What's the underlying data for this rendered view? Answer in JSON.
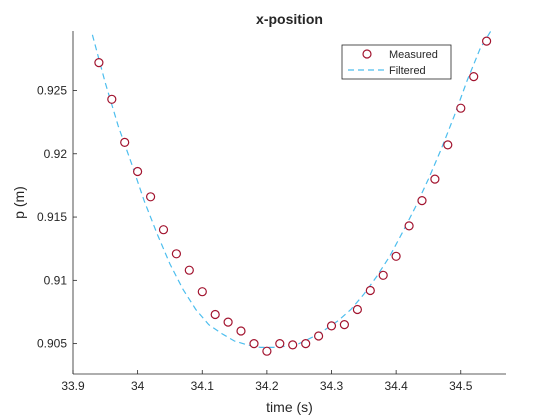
{
  "chart_data": {
    "type": "scatter",
    "title": "x-position",
    "xlabel": "time (s)",
    "ylabel": "p (m)",
    "xlim": [
      33.9,
      34.57
    ],
    "ylim": [
      0.9026,
      0.9297
    ],
    "xticks": [
      33.9,
      34.0,
      34.1,
      34.2,
      34.3,
      34.4,
      34.5
    ],
    "xtick_labels": [
      "33.9",
      "34",
      "34.1",
      "34.2",
      "34.3",
      "34.4",
      "34.5"
    ],
    "yticks": [
      0.905,
      0.91,
      0.915,
      0.92,
      0.925
    ],
    "ytick_labels": [
      "0.905",
      "0.91",
      "0.915",
      "0.92",
      "0.925"
    ],
    "grid": false,
    "legend_position": "top-right",
    "series": [
      {
        "name": "Measured",
        "style": "circle-markers",
        "color": "#a2142f",
        "fill": "#ffffff",
        "x": [
          33.94,
          33.96,
          33.98,
          34.0,
          34.02,
          34.04,
          34.06,
          34.08,
          34.1,
          34.12,
          34.14,
          34.16,
          34.18,
          34.2,
          34.22,
          34.24,
          34.26,
          34.28,
          34.3,
          34.32,
          34.34,
          34.36,
          34.38,
          34.4,
          34.42,
          34.44,
          34.46,
          34.48,
          34.5,
          34.52,
          34.54
        ],
        "y": [
          0.9272,
          0.9243,
          0.9209,
          0.9186,
          0.9166,
          0.914,
          0.9121,
          0.9108,
          0.9091,
          0.9073,
          0.9067,
          0.906,
          0.905,
          0.9044,
          0.905,
          0.9049,
          0.905,
          0.9056,
          0.9064,
          0.9065,
          0.9077,
          0.9092,
          0.9104,
          0.9119,
          0.9143,
          0.9163,
          0.918,
          0.9207,
          0.9236,
          0.9261,
          0.9289
        ]
      },
      {
        "name": "Filtered",
        "style": "dashed-line",
        "color": "#4dbeee",
        "x": [
          33.93,
          33.95,
          33.97,
          33.99,
          34.01,
          34.03,
          34.05,
          34.07,
          34.09,
          34.11,
          34.13,
          34.15,
          34.17,
          34.19,
          34.21,
          34.23,
          34.25,
          34.27,
          34.29,
          34.31,
          34.33,
          34.35,
          34.37,
          34.39,
          34.41,
          34.43,
          34.45,
          34.47,
          34.49,
          34.51,
          34.53,
          34.55
        ],
        "y": [
          0.9294,
          0.9256,
          0.9222,
          0.9193,
          0.9163,
          0.9137,
          0.9113,
          0.9093,
          0.9077,
          0.9065,
          0.9058,
          0.9052,
          0.9049,
          0.9047,
          0.9047,
          0.9048,
          0.905,
          0.9055,
          0.9061,
          0.9068,
          0.9077,
          0.9089,
          0.9103,
          0.9119,
          0.9138,
          0.9158,
          0.918,
          0.9204,
          0.923,
          0.9258,
          0.9283,
          0.93
        ]
      }
    ]
  }
}
